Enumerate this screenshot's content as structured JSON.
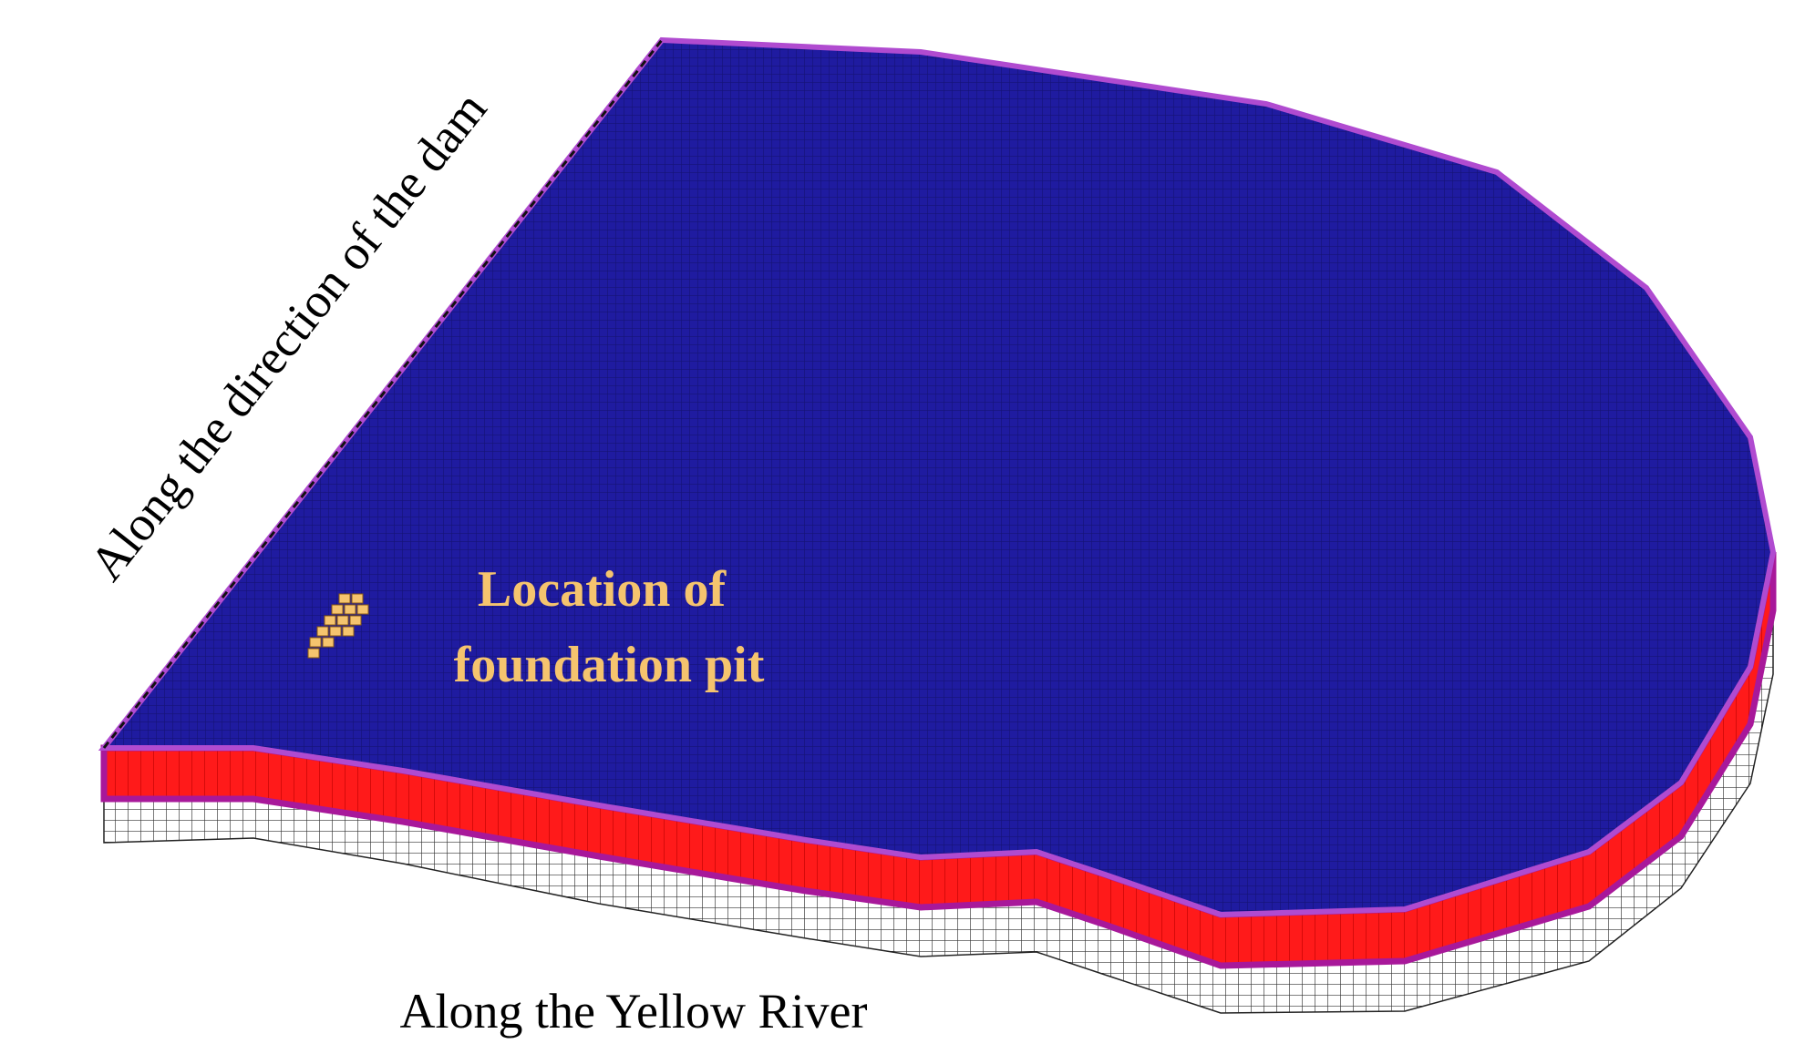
{
  "annotations": {
    "dam_direction": "Along the direction of the dam",
    "pit_label": [
      "Location of",
      "foundation pit"
    ],
    "river_direction": "Along the Yellow River"
  }
}
